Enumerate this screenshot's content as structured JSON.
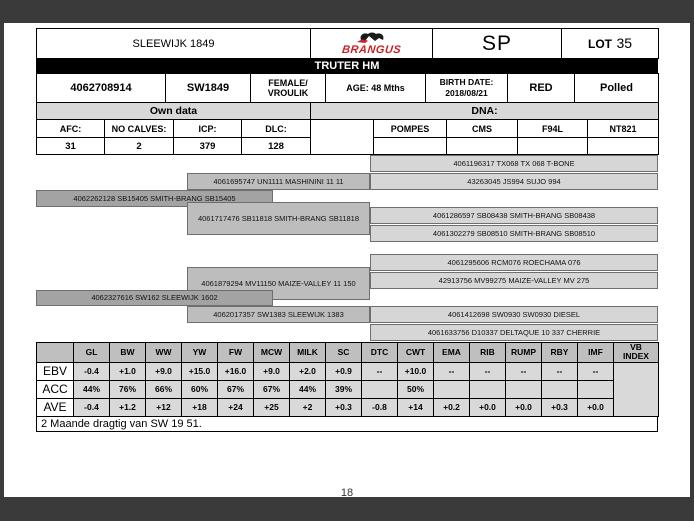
{
  "chrome": {
    "page_number": "18"
  },
  "header": {
    "animal_name": "SLEEWIJK 1849",
    "brand": "BRANGUS",
    "sp": "SP",
    "lot_prefix": "LOT",
    "lot_number": "35",
    "breeder_bar": "TRUTER HM"
  },
  "identity": {
    "id_number": "4062708914",
    "tag": "SW1849",
    "sex_line1": "FEMALE/",
    "sex_line2": "VROULIK",
    "age_label": "AGE: 48 Mths",
    "birth_label": "BIRTH DATE:",
    "birth_date": "2018/08/21",
    "colour": "RED",
    "horn_status": "Polled"
  },
  "own_data": {
    "section_label": "Own data",
    "fields": [
      {
        "label": "AFC:",
        "value": "31"
      },
      {
        "label": "NO CALVES:",
        "value": "2"
      },
      {
        "label": "ICP:",
        "value": "379"
      },
      {
        "label": "DLC:",
        "value": "128"
      }
    ]
  },
  "dna": {
    "section_label": "DNA:",
    "tests": [
      "POMPES",
      "CMS",
      "F94L",
      "NT821"
    ],
    "results": [
      "",
      "",
      "",
      ""
    ]
  },
  "pedigree": {
    "sire": {
      "name": "4062262128 SB15405 SMITH-BRANG SB15405",
      "sire": {
        "name": "4061695747 UN1111 MASHININI 11 11",
        "sire": {
          "name": "4061196317 TX068 TX 068 T-BONE"
        },
        "dam": {
          "name": "43263045 JS994 SUJO 994"
        }
      },
      "dam": {
        "name": "4061717476 SB11818 SMITH-BRANG SB11818",
        "sire": {
          "name": "4061286597 SB08438 SMITH-BRANG SB08438"
        },
        "dam": {
          "name": "4061302279 SB08510 SMITH-BRANG SB08510"
        }
      }
    },
    "dam": {
      "name": "4062327616 SW162 SLEEWIJK 1602",
      "sire": {
        "name": "4061879294 MV11150 MAIZE-VALLEY 11 150",
        "sire": {
          "name": "4061295606 RCM076 ROECHAMA 076"
        },
        "dam": {
          "name": "42913756 MV99275 MAIZE-VALLEY MV 275"
        }
      },
      "dam": {
        "name": "4062017357 SW1383 SLEEWIJK 1383",
        "sire": {
          "name": "4061412698 SW0930 SW0930 DIESEL"
        },
        "dam": {
          "name": "4061633756 D10337 DELTAQUE 10 337 CHERRIE"
        }
      }
    }
  },
  "ebv_table": {
    "columns": [
      "GL",
      "BW",
      "WW",
      "YW",
      "FW",
      "MCW",
      "MILK",
      "SC",
      "DTC",
      "CWT",
      "EMA",
      "RIB",
      "RUMP",
      "RBY",
      "IMF"
    ],
    "vb_line1": "VB",
    "vb_line2": "INDEX",
    "rows": [
      {
        "label": "EBV",
        "values": [
          "-0.4",
          "+1.0",
          "+9.0",
          "+15.0",
          "+16.0",
          "+9.0",
          "+2.0",
          "+0.9",
          "--",
          "+10.0",
          "--",
          "--",
          "--",
          "--",
          "--"
        ]
      },
      {
        "label": "ACC",
        "values": [
          "44%",
          "76%",
          "66%",
          "60%",
          "67%",
          "67%",
          "44%",
          "39%",
          "",
          "50%",
          "",
          "",
          "",
          "",
          ""
        ]
      },
      {
        "label": "AVE",
        "values": [
          "-0.4",
          "+1.2",
          "+12",
          "+18",
          "+24",
          "+25",
          "+2",
          "+0.3",
          "-0.8",
          "+14",
          "+0.2",
          "+0.0",
          "+0.0",
          "+0.3",
          "+0.0"
        ]
      }
    ],
    "vb_index_value": ""
  },
  "note": "2 Maande dragtig van SW 19 51."
}
